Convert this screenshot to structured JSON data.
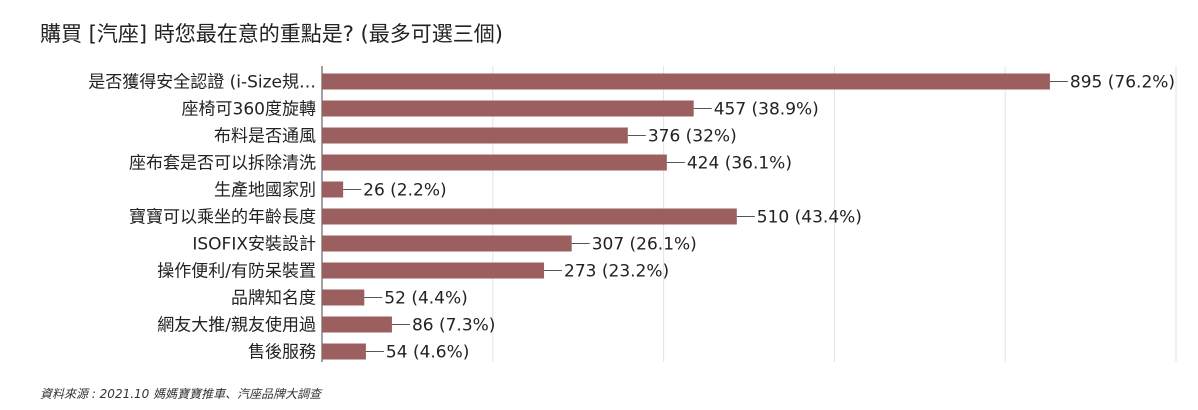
{
  "chart_data": {
    "type": "bar",
    "orientation": "horizontal",
    "title": "購買 [汽座] 時您最在意的重點是? (最多可選三個)",
    "categories": [
      "是否獲得安全認證 (i-Size規…",
      "座椅可360度旋轉",
      "布料是否通風",
      "座布套是否可以拆除清洗",
      "生產地國家別",
      "寶寶可以乘坐的年齡長度",
      "ISOFIX安裝設計",
      "操作便利/有防呆裝置",
      "品牌知名度",
      "網友大推/親友使用過",
      "售後服務"
    ],
    "values": [
      895,
      457,
      376,
      424,
      26,
      510,
      307,
      273,
      52,
      86,
      54
    ],
    "value_labels": [
      "895 (76.2%)",
      "457 (38.9%)",
      "376 (32%)",
      "424 (36.1%)",
      "26 (2.2%)",
      "510 (43.4%)",
      "307 (26.1%)",
      "273 (23.2%)",
      "52 (4.4%)",
      "86 (7.3%)",
      "54 (4.6%)"
    ],
    "xlim": [
      0,
      1050
    ],
    "grid": true,
    "bar_color": "#9c5f5f",
    "source": "資料來源 : 2021.10 媽媽寶寶推車、汽座品牌大調查"
  }
}
